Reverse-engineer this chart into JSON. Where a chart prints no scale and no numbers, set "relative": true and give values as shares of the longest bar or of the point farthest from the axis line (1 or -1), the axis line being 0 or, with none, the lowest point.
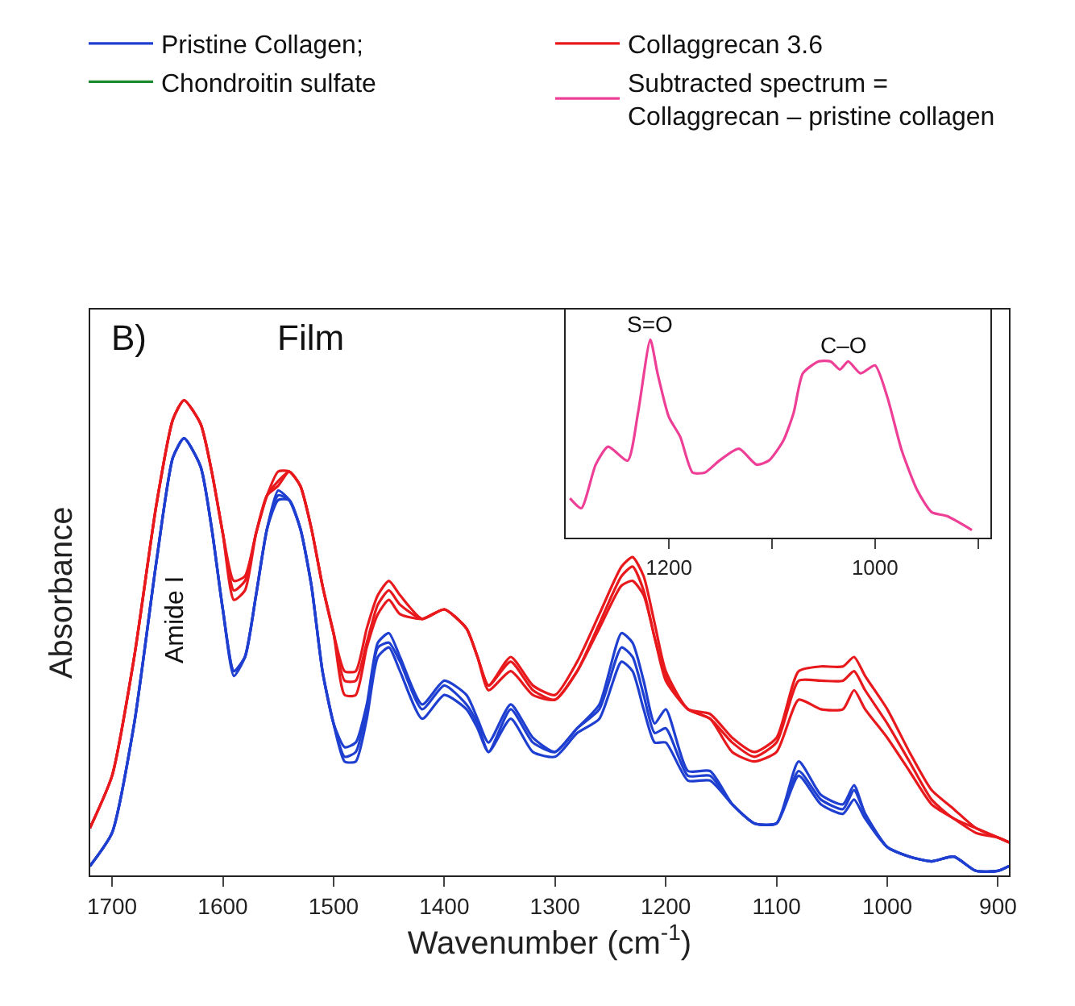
{
  "chart_data": [
    {
      "type": "line",
      "relative": true,
      "xlabel": "Wavenumber (cm$^{-1}$)",
      "ylabel": "Absorbance",
      "xlim": [
        1720,
        890
      ],
      "xticks": [
        1700,
        1600,
        1500,
        1400,
        1300,
        1200,
        1100,
        1000,
        900
      ],
      "legend": "top",
      "line_style": "solid",
      "marker": "none",
      "x": [
        1720,
        1700,
        1680,
        1660,
        1645,
        1635,
        1620,
        1610,
        1600,
        1590,
        1580,
        1570,
        1560,
        1550,
        1540,
        1530,
        1520,
        1510,
        1500,
        1490,
        1480,
        1470,
        1460,
        1450,
        1440,
        1420,
        1400,
        1380,
        1370,
        1360,
        1340,
        1320,
        1300,
        1280,
        1260,
        1240,
        1230,
        1220,
        1210,
        1200,
        1180,
        1160,
        1140,
        1120,
        1100,
        1080,
        1060,
        1040,
        1030,
        1020,
        1000,
        980,
        960,
        940,
        920,
        900,
        890
      ],
      "annotations": [
        "B)",
        "Film",
        "Amide I"
      ],
      "series": [
        {
          "name": "Pristine Collagen;",
          "color": "#1f3fd0",
          "values": [
            0.02,
            0.09,
            0.32,
            0.66,
            0.88,
            0.92,
            0.86,
            0.73,
            0.56,
            0.43,
            0.46,
            0.59,
            0.73,
            0.81,
            0.79,
            0.73,
            0.61,
            0.43,
            0.32,
            0.27,
            0.28,
            0.36,
            0.49,
            0.51,
            0.46,
            0.36,
            0.41,
            0.38,
            0.33,
            0.28,
            0.36,
            0.29,
            0.26,
            0.31,
            0.36,
            0.51,
            0.49,
            0.41,
            0.32,
            0.35,
            0.22,
            0.22,
            0.15,
            0.11,
            0.11,
            0.24,
            0.17,
            0.15,
            0.19,
            0.13,
            0.06,
            0.04,
            0.03,
            0.04,
            0.01,
            0.01,
            0.02
          ]
        },
        {
          "color": "#1f3fd0",
          "values": [
            0.02,
            0.09,
            0.32,
            0.66,
            0.88,
            0.92,
            0.86,
            0.73,
            0.56,
            0.43,
            0.46,
            0.59,
            0.73,
            0.8,
            0.79,
            0.73,
            0.61,
            0.43,
            0.32,
            0.25,
            0.26,
            0.35,
            0.48,
            0.49,
            0.45,
            0.35,
            0.4,
            0.36,
            0.32,
            0.26,
            0.35,
            0.28,
            0.26,
            0.31,
            0.35,
            0.48,
            0.46,
            0.38,
            0.3,
            0.31,
            0.21,
            0.21,
            0.15,
            0.11,
            0.11,
            0.22,
            0.16,
            0.14,
            0.18,
            0.13,
            0.06,
            0.04,
            0.03,
            0.04,
            0.01,
            0.01,
            0.02
          ]
        },
        {
          "color": "#1f3fd0",
          "values": [
            0.02,
            0.09,
            0.32,
            0.66,
            0.88,
            0.92,
            0.86,
            0.73,
            0.56,
            0.42,
            0.46,
            0.59,
            0.73,
            0.79,
            0.79,
            0.73,
            0.61,
            0.43,
            0.32,
            0.24,
            0.24,
            0.33,
            0.46,
            0.48,
            0.43,
            0.33,
            0.38,
            0.35,
            0.31,
            0.26,
            0.33,
            0.26,
            0.25,
            0.3,
            0.33,
            0.45,
            0.43,
            0.35,
            0.28,
            0.28,
            0.2,
            0.2,
            0.15,
            0.11,
            0.11,
            0.21,
            0.15,
            0.13,
            0.16,
            0.12,
            0.06,
            0.04,
            0.03,
            0.04,
            0.01,
            0.01,
            0.02
          ]
        },
        {
          "name": "Collaggrecan 3.6",
          "color": "#e8191c",
          "values": [
            0.1,
            0.21,
            0.46,
            0.78,
            0.96,
            1.0,
            0.95,
            0.85,
            0.72,
            0.62,
            0.63,
            0.72,
            0.8,
            0.85,
            0.85,
            0.82,
            0.73,
            0.61,
            0.51,
            0.43,
            0.43,
            0.52,
            0.59,
            0.62,
            0.59,
            0.54,
            0.56,
            0.52,
            0.46,
            0.4,
            0.46,
            0.4,
            0.38,
            0.45,
            0.55,
            0.65,
            0.67,
            0.63,
            0.53,
            0.43,
            0.35,
            0.34,
            0.29,
            0.26,
            0.29,
            0.43,
            0.44,
            0.44,
            0.46,
            0.42,
            0.35,
            0.26,
            0.18,
            0.14,
            0.1,
            0.08,
            0.07
          ]
        },
        {
          "color": "#e8191c",
          "values": [
            0.1,
            0.21,
            0.46,
            0.78,
            0.96,
            1.0,
            0.95,
            0.85,
            0.72,
            0.6,
            0.62,
            0.72,
            0.8,
            0.83,
            0.85,
            0.82,
            0.73,
            0.61,
            0.51,
            0.41,
            0.41,
            0.49,
            0.57,
            0.6,
            0.57,
            0.54,
            0.56,
            0.52,
            0.46,
            0.4,
            0.45,
            0.39,
            0.37,
            0.43,
            0.53,
            0.63,
            0.65,
            0.6,
            0.5,
            0.42,
            0.35,
            0.33,
            0.28,
            0.25,
            0.28,
            0.41,
            0.41,
            0.41,
            0.43,
            0.39,
            0.32,
            0.24,
            0.16,
            0.12,
            0.1,
            0.08,
            0.07
          ]
        },
        {
          "color": "#e8191c",
          "values": [
            0.1,
            0.21,
            0.46,
            0.78,
            0.96,
            1.0,
            0.95,
            0.85,
            0.72,
            0.58,
            0.6,
            0.72,
            0.8,
            0.82,
            0.85,
            0.82,
            0.73,
            0.61,
            0.51,
            0.38,
            0.38,
            0.48,
            0.55,
            0.58,
            0.55,
            0.54,
            0.56,
            0.52,
            0.46,
            0.39,
            0.43,
            0.38,
            0.37,
            0.43,
            0.52,
            0.61,
            0.62,
            0.59,
            0.5,
            0.41,
            0.35,
            0.33,
            0.26,
            0.24,
            0.26,
            0.37,
            0.35,
            0.35,
            0.39,
            0.35,
            0.29,
            0.22,
            0.15,
            0.12,
            0.09,
            0.08,
            0.07
          ]
        },
        {
          "name": "Chondroitin sulfate",
          "color": "#1e8a2e",
          "values": [
            null,
            null,
            null,
            null,
            null,
            null,
            null,
            null,
            null,
            null,
            null,
            null,
            null,
            null,
            null,
            null,
            null,
            null,
            null,
            null,
            null,
            null,
            null,
            null,
            null,
            null,
            null,
            null,
            null,
            null,
            null,
            null,
            null,
            null,
            null,
            null,
            null,
            null,
            null,
            null,
            null,
            null,
            null,
            null,
            null,
            null,
            null,
            null,
            null,
            null,
            null,
            null,
            null,
            null,
            null,
            null,
            null
          ]
        }
      ]
    },
    {
      "type": "line",
      "relative": true,
      "xlim": [
        1300,
        888
      ],
      "xticks": [
        1200,
        {
          "value": 1100,
          "label": null
        },
        1000,
        {
          "value": 900,
          "label": null
        }
      ],
      "line_style": "solid",
      "marker": "none",
      "x": [
        1296,
        1285,
        1271,
        1259,
        1240,
        1230,
        1218,
        1211,
        1200,
        1189,
        1177,
        1165,
        1151,
        1132,
        1115,
        1103,
        1089,
        1079,
        1070,
        1055,
        1043,
        1034,
        1026,
        1014,
        1000,
        988,
        974,
        959,
        945,
        930,
        906
      ],
      "annotations": [
        {
          "text": "S=O",
          "x": 1218,
          "y": 1.0
        },
        {
          "text": "C–O",
          "x": 1030,
          "y": 0.89
        }
      ],
      "series": [
        {
          "name": "Subtracted spectrum =\nCollaggrecan – pristine collagen",
          "color": "#ee3f97",
          "values": [
            0.2,
            0.15,
            0.37,
            0.46,
            0.39,
            0.63,
            1.0,
            0.83,
            0.61,
            0.51,
            0.33,
            0.33,
            0.39,
            0.45,
            0.37,
            0.39,
            0.49,
            0.63,
            0.83,
            0.89,
            0.89,
            0.85,
            0.89,
            0.83,
            0.87,
            0.71,
            0.44,
            0.24,
            0.13,
            0.11,
            0.04
          ]
        }
      ]
    }
  ]
}
